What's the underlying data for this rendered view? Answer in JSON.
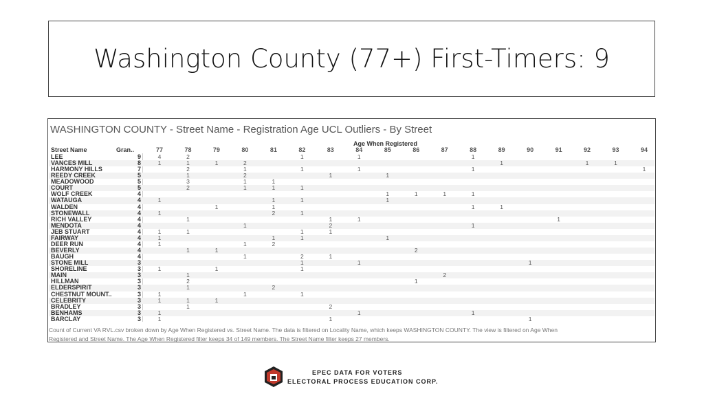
{
  "title": "Washington County (77+) First-Timers: 9",
  "panel": {
    "title": "WASHINGTON COUNTY  - Street Name -  Registration Age UCL Outliers - By Street",
    "column_group_label": "Age When Registered",
    "headers": {
      "street": "Street Name",
      "total": "Gran..",
      "ages": [
        77,
        78,
        79,
        80,
        81,
        82,
        83,
        84,
        85,
        86,
        87,
        88,
        89,
        90,
        91,
        92,
        93,
        94
      ]
    },
    "rows": [
      {
        "street": "LEE",
        "total": 9,
        "counts": [
          4,
          2,
          null,
          null,
          null,
          1,
          null,
          1,
          null,
          null,
          null,
          1,
          null,
          null,
          null,
          null,
          null,
          null
        ]
      },
      {
        "street": "VANCES MILL",
        "total": 8,
        "counts": [
          1,
          1,
          1,
          2,
          null,
          null,
          null,
          null,
          null,
          null,
          null,
          null,
          1,
          null,
          null,
          1,
          1,
          null
        ]
      },
      {
        "street": "HARMONY HILLS",
        "total": 7,
        "counts": [
          null,
          2,
          null,
          1,
          null,
          1,
          null,
          1,
          null,
          null,
          null,
          1,
          null,
          null,
          null,
          null,
          null,
          1
        ]
      },
      {
        "street": "REEDY CREEK",
        "total": 5,
        "counts": [
          null,
          1,
          null,
          2,
          null,
          null,
          1,
          null,
          1,
          null,
          null,
          null,
          null,
          null,
          null,
          null,
          null,
          null
        ]
      },
      {
        "street": "MEADOWOOD",
        "total": 5,
        "counts": [
          null,
          3,
          null,
          1,
          1,
          null,
          null,
          null,
          null,
          null,
          null,
          null,
          null,
          null,
          null,
          null,
          null,
          null
        ]
      },
      {
        "street": "COURT",
        "total": 5,
        "counts": [
          null,
          2,
          null,
          1,
          1,
          1,
          null,
          null,
          null,
          null,
          null,
          null,
          null,
          null,
          null,
          null,
          null,
          null
        ]
      },
      {
        "street": "WOLF CREEK",
        "total": 4,
        "counts": [
          null,
          null,
          null,
          null,
          null,
          null,
          null,
          null,
          1,
          1,
          1,
          1,
          null,
          null,
          null,
          null,
          null,
          null
        ]
      },
      {
        "street": "WATAUGA",
        "total": 4,
        "counts": [
          1,
          null,
          null,
          null,
          1,
          1,
          null,
          null,
          1,
          null,
          null,
          null,
          null,
          null,
          null,
          null,
          null,
          null
        ]
      },
      {
        "street": "WALDEN",
        "total": 4,
        "counts": [
          null,
          null,
          1,
          null,
          1,
          null,
          null,
          null,
          null,
          null,
          null,
          1,
          1,
          null,
          null,
          null,
          null,
          null
        ]
      },
      {
        "street": "STONEWALL",
        "total": 4,
        "counts": [
          1,
          null,
          null,
          null,
          2,
          1,
          null,
          null,
          null,
          null,
          null,
          null,
          null,
          null,
          null,
          null,
          null,
          null
        ]
      },
      {
        "street": "RICH VALLEY",
        "total": 4,
        "counts": [
          null,
          1,
          null,
          null,
          null,
          null,
          1,
          1,
          null,
          null,
          null,
          null,
          null,
          null,
          1,
          null,
          null,
          null
        ]
      },
      {
        "street": "MENDOTA",
        "total": 4,
        "counts": [
          null,
          null,
          null,
          1,
          null,
          null,
          2,
          null,
          null,
          null,
          null,
          1,
          null,
          null,
          null,
          null,
          null,
          null
        ]
      },
      {
        "street": "JEB STUART",
        "total": 4,
        "counts": [
          1,
          1,
          null,
          null,
          null,
          1,
          1,
          null,
          null,
          null,
          null,
          null,
          null,
          null,
          null,
          null,
          null,
          null
        ]
      },
      {
        "street": "FAIRWAY",
        "total": 4,
        "counts": [
          1,
          null,
          null,
          null,
          1,
          1,
          null,
          null,
          1,
          null,
          null,
          null,
          null,
          null,
          null,
          null,
          null,
          null
        ]
      },
      {
        "street": "DEER RUN",
        "total": 4,
        "counts": [
          1,
          null,
          null,
          1,
          2,
          null,
          null,
          null,
          null,
          null,
          null,
          null,
          null,
          null,
          null,
          null,
          null,
          null
        ]
      },
      {
        "street": "BEVERLY",
        "total": 4,
        "counts": [
          null,
          1,
          1,
          null,
          null,
          null,
          null,
          null,
          null,
          2,
          null,
          null,
          null,
          null,
          null,
          null,
          null,
          null
        ]
      },
      {
        "street": "BAUGH",
        "total": 4,
        "counts": [
          null,
          null,
          null,
          1,
          null,
          2,
          1,
          null,
          null,
          null,
          null,
          null,
          null,
          null,
          null,
          null,
          null,
          null
        ]
      },
      {
        "street": "STONE MILL",
        "total": 3,
        "counts": [
          null,
          null,
          null,
          null,
          null,
          1,
          null,
          1,
          null,
          null,
          null,
          null,
          null,
          1,
          null,
          null,
          null,
          null
        ]
      },
      {
        "street": "SHORELINE",
        "total": 3,
        "counts": [
          1,
          null,
          1,
          null,
          null,
          1,
          null,
          null,
          null,
          null,
          null,
          null,
          null,
          null,
          null,
          null,
          null,
          null
        ]
      },
      {
        "street": "MAIN",
        "total": 3,
        "counts": [
          null,
          1,
          null,
          null,
          null,
          null,
          null,
          null,
          null,
          null,
          2,
          null,
          null,
          null,
          null,
          null,
          null,
          null
        ]
      },
      {
        "street": "HILLMAN",
        "total": 3,
        "counts": [
          null,
          2,
          null,
          null,
          null,
          null,
          null,
          null,
          null,
          1,
          null,
          null,
          null,
          null,
          null,
          null,
          null,
          null
        ]
      },
      {
        "street": "ELDERSPIRIT",
        "total": 3,
        "counts": [
          null,
          1,
          null,
          null,
          2,
          null,
          null,
          null,
          null,
          null,
          null,
          null,
          null,
          null,
          null,
          null,
          null,
          null
        ]
      },
      {
        "street": "CHESTNUT MOUNT..",
        "total": 3,
        "counts": [
          1,
          null,
          null,
          1,
          null,
          1,
          null,
          null,
          null,
          null,
          null,
          null,
          null,
          null,
          null,
          null,
          null,
          null
        ]
      },
      {
        "street": "CELEBRITY",
        "total": 3,
        "counts": [
          1,
          1,
          1,
          null,
          null,
          null,
          null,
          null,
          null,
          null,
          null,
          null,
          null,
          null,
          null,
          null,
          null,
          null
        ]
      },
      {
        "street": "BRADLEY",
        "total": 3,
        "counts": [
          null,
          1,
          null,
          null,
          null,
          null,
          2,
          null,
          null,
          null,
          null,
          null,
          null,
          null,
          null,
          null,
          null,
          null
        ]
      },
      {
        "street": "BENHAMS",
        "total": 3,
        "counts": [
          1,
          null,
          null,
          null,
          null,
          null,
          null,
          1,
          null,
          null,
          null,
          1,
          null,
          null,
          null,
          null,
          null,
          null
        ]
      },
      {
        "street": "BARCLAY",
        "total": 3,
        "counts": [
          1,
          null,
          null,
          null,
          null,
          null,
          1,
          null,
          null,
          null,
          null,
          null,
          null,
          1,
          null,
          null,
          null,
          null
        ]
      }
    ],
    "footer": [
      "Count of Current VA RVL.csv broken down by Age When Registered vs. Street Name. The data is filtered on Locality Name, which keeps WASHINGTON COUNTY. The view is filtered on Age When",
      "Registered and Street Name. The Age When Registered filter keeps 34 of 149 members. The Street Name filter keeps 27 members."
    ]
  },
  "logo": {
    "line1": "EPEC DATA FOR VOTERS",
    "line2": "ELECTORAL PROCESS EDUCATION CORP."
  }
}
